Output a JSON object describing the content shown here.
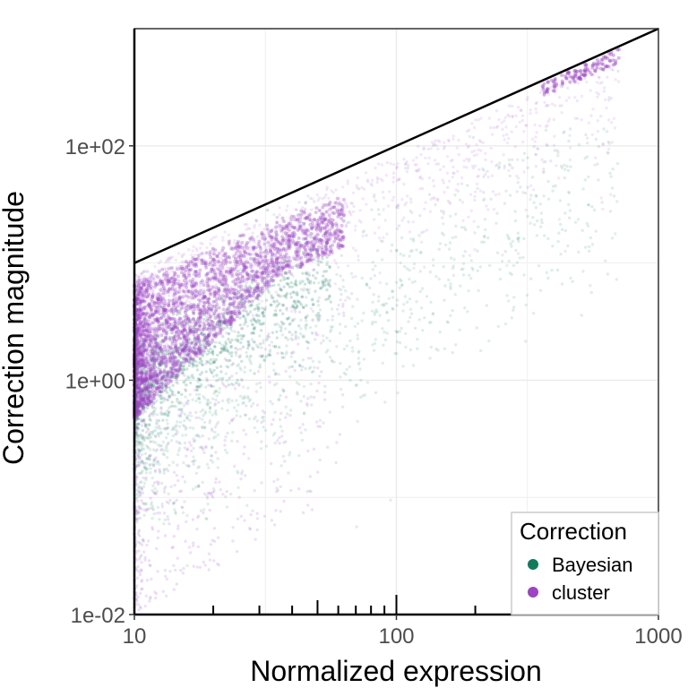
{
  "chart_data": {
    "type": "scatter",
    "xlabel": "Normalized expression",
    "ylabel": "Correction magnitude",
    "x_scale": "log10",
    "y_scale": "log10",
    "xlim": [
      10,
      1000
    ],
    "ylim": [
      0.01,
      1000
    ],
    "x_ticks": [
      {
        "value": 10,
        "label": "10"
      },
      {
        "value": 100,
        "label": "100"
      },
      {
        "value": 1000,
        "label": "1000"
      }
    ],
    "y_ticks": [
      {
        "value": 0.01,
        "label": "1e-02"
      },
      {
        "value": 1,
        "label": "1e+00"
      },
      {
        "value": 100,
        "label": "1e+02"
      }
    ],
    "grid": true,
    "reference_line": {
      "slope": 1,
      "intercept": 0
    },
    "legend": {
      "title": "Correction",
      "position": "bottom-right",
      "entries": [
        {
          "name": "Bayesian",
          "color": "#117a5a"
        },
        {
          "name": "cluster",
          "color": "#9b45c4"
        }
      ]
    },
    "series": [
      {
        "name": "Bayesian",
        "color": "#117a5a",
        "description_points": [
          [
            10,
            0.3
          ],
          [
            12,
            0.5
          ],
          [
            15,
            0.8
          ],
          [
            20,
            1.5
          ],
          [
            25,
            2.2
          ],
          [
            30,
            3
          ],
          [
            40,
            5
          ],
          [
            60,
            8
          ],
          [
            80,
            12
          ],
          [
            120,
            15
          ],
          [
            200,
            50
          ],
          [
            500,
            300
          ],
          [
            700,
            550
          ]
        ]
      },
      {
        "name": "cluster",
        "color": "#9b45c4",
        "description_points": [
          [
            10,
            1
          ],
          [
            10,
            5
          ],
          [
            12,
            8
          ],
          [
            15,
            10
          ],
          [
            20,
            14
          ],
          [
            30,
            20
          ],
          [
            50,
            28
          ],
          [
            80,
            50
          ],
          [
            120,
            80
          ],
          [
            300,
            200
          ],
          [
            500,
            400
          ],
          [
            700,
            650
          ]
        ]
      }
    ]
  }
}
